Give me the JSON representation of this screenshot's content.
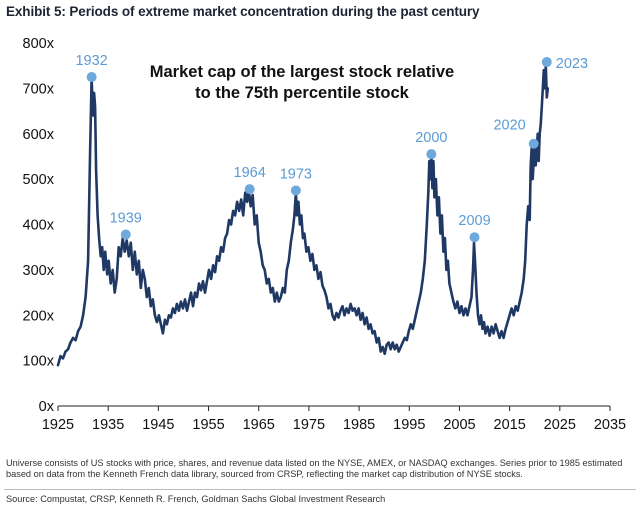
{
  "exhibit_title": "Exhibit 5: Periods of extreme market concentration during the past century",
  "footnote": "Universe consists of US stocks with price, shares, and revenue data listed on the NYSE, AMEX, or NASDAQ exchanges. Series prior to 1985 estimated based on data from the Kenneth French data library, sourced from CRSP, reflecting the market cap distribution of NYSE stocks.",
  "source": "Source: Compustat, CRSP, Kenneth R. French, Goldman Sachs Global Investment Research",
  "colors": {
    "line": "#1f3864",
    "marker": "#6fa8dc",
    "marker_label": "#5b9bd5"
  },
  "chart_data": {
    "type": "line",
    "title_lines": [
      "Market cap of the largest stock relative",
      "to the 75th percentile stock"
    ],
    "xlim": [
      1925,
      2035
    ],
    "ylim": [
      0,
      800
    ],
    "x_ticks": [
      1925,
      1935,
      1945,
      1955,
      1965,
      1975,
      1985,
      1995,
      2005,
      2015,
      2025,
      2035
    ],
    "y_ticks": [
      0,
      100,
      200,
      300,
      400,
      500,
      600,
      700,
      800
    ],
    "y_tick_labels": [
      "0x",
      "100x",
      "200x",
      "300x",
      "400x",
      "500x",
      "600x",
      "700x",
      "800x"
    ],
    "series": [
      {
        "name": "Market cap of largest stock / 75th percentile stock",
        "points": [
          [
            1925.0,
            90
          ],
          [
            1925.5,
            110
          ],
          [
            1926.0,
            105
          ],
          [
            1926.5,
            120
          ],
          [
            1927.0,
            125
          ],
          [
            1927.5,
            140
          ],
          [
            1928.0,
            150
          ],
          [
            1928.5,
            145
          ],
          [
            1929.0,
            165
          ],
          [
            1929.5,
            175
          ],
          [
            1930.0,
            200
          ],
          [
            1930.5,
            240
          ],
          [
            1931.0,
            320
          ],
          [
            1931.4,
            560
          ],
          [
            1931.7,
            720
          ],
          [
            1932.0,
            640
          ],
          [
            1932.2,
            690
          ],
          [
            1932.4,
            660
          ],
          [
            1932.6,
            520
          ],
          [
            1932.9,
            420
          ],
          [
            1933.2,
            370
          ],
          [
            1933.5,
            330
          ],
          [
            1933.8,
            350
          ],
          [
            1934.1,
            300
          ],
          [
            1934.4,
            340
          ],
          [
            1934.8,
            290
          ],
          [
            1935.1,
            320
          ],
          [
            1935.5,
            270
          ],
          [
            1935.9,
            300
          ],
          [
            1936.3,
            250
          ],
          [
            1936.7,
            280
          ],
          [
            1937.1,
            350
          ],
          [
            1937.5,
            330
          ],
          [
            1937.9,
            370
          ],
          [
            1938.3,
            340
          ],
          [
            1938.7,
            365
          ],
          [
            1939.1,
            330
          ],
          [
            1939.5,
            360
          ],
          [
            1939.9,
            300
          ],
          [
            1940.3,
            340
          ],
          [
            1940.7,
            290
          ],
          [
            1941.1,
            320
          ],
          [
            1941.5,
            260
          ],
          [
            1941.9,
            300
          ],
          [
            1942.3,
            280
          ],
          [
            1942.7,
            240
          ],
          [
            1943.1,
            260
          ],
          [
            1943.5,
            220
          ],
          [
            1943.9,
            235
          ],
          [
            1944.3,
            200
          ],
          [
            1944.7,
            185
          ],
          [
            1945.1,
            200
          ],
          [
            1945.5,
            180
          ],
          [
            1945.9,
            160
          ],
          [
            1946.3,
            190
          ],
          [
            1946.7,
            180
          ],
          [
            1947.1,
            200
          ],
          [
            1947.5,
            195
          ],
          [
            1947.9,
            215
          ],
          [
            1948.3,
            205
          ],
          [
            1948.7,
            225
          ],
          [
            1949.1,
            210
          ],
          [
            1949.5,
            230
          ],
          [
            1949.9,
            215
          ],
          [
            1950.3,
            235
          ],
          [
            1950.7,
            210
          ],
          [
            1951.1,
            230
          ],
          [
            1951.5,
            250
          ],
          [
            1951.9,
            220
          ],
          [
            1952.3,
            250
          ],
          [
            1952.7,
            240
          ],
          [
            1953.1,
            270
          ],
          [
            1953.5,
            255
          ],
          [
            1953.9,
            275
          ],
          [
            1954.3,
            250
          ],
          [
            1954.7,
            275
          ],
          [
            1955.1,
            300
          ],
          [
            1955.5,
            280
          ],
          [
            1955.9,
            310
          ],
          [
            1956.3,
            295
          ],
          [
            1956.7,
            330
          ],
          [
            1957.1,
            320
          ],
          [
            1957.5,
            350
          ],
          [
            1957.9,
            340
          ],
          [
            1958.3,
            370
          ],
          [
            1958.7,
            380
          ],
          [
            1959.1,
            410
          ],
          [
            1959.5,
            400
          ],
          [
            1959.9,
            430
          ],
          [
            1960.3,
            420
          ],
          [
            1960.7,
            450
          ],
          [
            1961.1,
            430
          ],
          [
            1961.5,
            455
          ],
          [
            1961.9,
            420
          ],
          [
            1962.3,
            470
          ],
          [
            1962.7,
            450
          ],
          [
            1963.0,
            478
          ],
          [
            1963.4,
            440
          ],
          [
            1963.8,
            465
          ],
          [
            1964.2,
            400
          ],
          [
            1964.6,
            420
          ],
          [
            1965.0,
            360
          ],
          [
            1965.4,
            340
          ],
          [
            1965.8,
            310
          ],
          [
            1966.2,
            300
          ],
          [
            1966.6,
            270
          ],
          [
            1967.0,
            280
          ],
          [
            1967.4,
            250
          ],
          [
            1967.8,
            260
          ],
          [
            1968.2,
            230
          ],
          [
            1968.6,
            250
          ],
          [
            1969.0,
            230
          ],
          [
            1969.4,
            240
          ],
          [
            1969.8,
            260
          ],
          [
            1970.2,
            250
          ],
          [
            1970.6,
            300
          ],
          [
            1971.0,
            320
          ],
          [
            1971.4,
            360
          ],
          [
            1971.8,
            390
          ],
          [
            1972.1,
            420
          ],
          [
            1972.4,
            470
          ],
          [
            1972.6,
            420
          ],
          [
            1972.9,
            450
          ],
          [
            1973.2,
            400
          ],
          [
            1973.5,
            420
          ],
          [
            1973.8,
            370
          ],
          [
            1974.1,
            380
          ],
          [
            1974.5,
            340
          ],
          [
            1974.9,
            350
          ],
          [
            1975.3,
            320
          ],
          [
            1975.7,
            335
          ],
          [
            1976.1,
            300
          ],
          [
            1976.5,
            310
          ],
          [
            1976.9,
            280
          ],
          [
            1977.3,
            295
          ],
          [
            1977.7,
            265
          ],
          [
            1978.1,
            255
          ],
          [
            1978.5,
            240
          ],
          [
            1978.9,
            215
          ],
          [
            1979.3,
            225
          ],
          [
            1979.7,
            200
          ],
          [
            1980.1,
            190
          ],
          [
            1980.5,
            205
          ],
          [
            1980.9,
            195
          ],
          [
            1981.3,
            210
          ],
          [
            1981.7,
            220
          ],
          [
            1982.1,
            200
          ],
          [
            1982.5,
            215
          ],
          [
            1982.9,
            205
          ],
          [
            1983.3,
            225
          ],
          [
            1983.7,
            210
          ],
          [
            1984.1,
            215
          ],
          [
            1984.5,
            200
          ],
          [
            1984.9,
            215
          ],
          [
            1985.3,
            190
          ],
          [
            1985.7,
            205
          ],
          [
            1986.1,
            180
          ],
          [
            1986.5,
            195
          ],
          [
            1986.9,
            170
          ],
          [
            1987.3,
            180
          ],
          [
            1987.7,
            160
          ],
          [
            1988.1,
            165
          ],
          [
            1988.5,
            140
          ],
          [
            1988.9,
            150
          ],
          [
            1989.3,
            120
          ],
          [
            1989.7,
            130
          ],
          [
            1990.1,
            115
          ],
          [
            1990.5,
            135
          ],
          [
            1990.9,
            140
          ],
          [
            1991.3,
            125
          ],
          [
            1991.7,
            140
          ],
          [
            1992.1,
            125
          ],
          [
            1992.5,
            135
          ],
          [
            1992.9,
            120
          ],
          [
            1993.3,
            130
          ],
          [
            1993.7,
            140
          ],
          [
            1994.1,
            150
          ],
          [
            1994.5,
            145
          ],
          [
            1994.9,
            165
          ],
          [
            1995.3,
            180
          ],
          [
            1995.7,
            170
          ],
          [
            1996.1,
            190
          ],
          [
            1996.5,
            210
          ],
          [
            1996.9,
            230
          ],
          [
            1997.3,
            250
          ],
          [
            1997.7,
            280
          ],
          [
            1998.1,
            320
          ],
          [
            1998.5,
            400
          ],
          [
            1998.8,
            470
          ],
          [
            1999.0,
            540
          ],
          [
            1999.2,
            500
          ],
          [
            1999.4,
            550
          ],
          [
            1999.6,
            480
          ],
          [
            1999.8,
            540
          ],
          [
            2000.0,
            460
          ],
          [
            2000.3,
            500
          ],
          [
            2000.6,
            420
          ],
          [
            2000.9,
            460
          ],
          [
            2001.2,
            380
          ],
          [
            2001.5,
            420
          ],
          [
            2001.8,
            340
          ],
          [
            2002.1,
            370
          ],
          [
            2002.4,
            300
          ],
          [
            2002.7,
            320
          ],
          [
            2003.0,
            270
          ],
          [
            2003.4,
            250
          ],
          [
            2003.8,
            230
          ],
          [
            2004.2,
            215
          ],
          [
            2004.6,
            230
          ],
          [
            2005.0,
            205
          ],
          [
            2005.4,
            220
          ],
          [
            2005.8,
            200
          ],
          [
            2006.2,
            215
          ],
          [
            2006.6,
            200
          ],
          [
            2007.0,
            220
          ],
          [
            2007.4,
            240
          ],
          [
            2007.7,
            300
          ],
          [
            2007.9,
            360
          ],
          [
            2008.1,
            320
          ],
          [
            2008.4,
            250
          ],
          [
            2008.7,
            200
          ],
          [
            2009.0,
            180
          ],
          [
            2009.3,
            200
          ],
          [
            2009.6,
            170
          ],
          [
            2009.9,
            185
          ],
          [
            2010.2,
            160
          ],
          [
            2010.6,
            175
          ],
          [
            2011.0,
            155
          ],
          [
            2011.4,
            175
          ],
          [
            2011.8,
            160
          ],
          [
            2012.2,
            180
          ],
          [
            2012.6,
            165
          ],
          [
            2013.0,
            150
          ],
          [
            2013.4,
            165
          ],
          [
            2013.8,
            150
          ],
          [
            2014.2,
            170
          ],
          [
            2014.6,
            185
          ],
          [
            2015.0,
            200
          ],
          [
            2015.4,
            215
          ],
          [
            2015.8,
            200
          ],
          [
            2016.2,
            220
          ],
          [
            2016.6,
            210
          ],
          [
            2017.0,
            230
          ],
          [
            2017.4,
            250
          ],
          [
            2017.8,
            280
          ],
          [
            2018.1,
            320
          ],
          [
            2018.4,
            400
          ],
          [
            2018.7,
            440
          ],
          [
            2019.0,
            410
          ],
          [
            2019.2,
            530
          ],
          [
            2019.4,
            570
          ],
          [
            2019.6,
            500
          ],
          [
            2019.8,
            540
          ],
          [
            2020.0,
            580
          ],
          [
            2020.2,
            530
          ],
          [
            2020.4,
            560
          ],
          [
            2020.6,
            600
          ],
          [
            2020.8,
            540
          ],
          [
            2021.0,
            600
          ],
          [
            2021.2,
            620
          ],
          [
            2021.4,
            660
          ],
          [
            2021.6,
            700
          ],
          [
            2021.8,
            740
          ],
          [
            2022.0,
            700
          ],
          [
            2022.2,
            750
          ],
          [
            2022.4,
            680
          ],
          [
            2022.6,
            700
          ]
        ]
      }
    ],
    "annotations": [
      {
        "year": 1932,
        "x": 1931.7,
        "y": 725,
        "label": "1932",
        "label_pos": "above"
      },
      {
        "year": 1939,
        "x": 1938.5,
        "y": 378,
        "label": "1939",
        "label_pos": "above"
      },
      {
        "year": 1964,
        "x": 1963.2,
        "y": 478,
        "label": "1964",
        "label_pos": "above"
      },
      {
        "year": 1973,
        "x": 1972.4,
        "y": 475,
        "label": "1973",
        "label_pos": "above"
      },
      {
        "year": 2000,
        "x": 1999.4,
        "y": 555,
        "label": "2000",
        "label_pos": "above"
      },
      {
        "year": 2009,
        "x": 2008.0,
        "y": 372,
        "label": "2009",
        "label_pos": "above"
      },
      {
        "year": 2020,
        "x": 2019.8,
        "y": 578,
        "label": "2020",
        "label_pos": "upper-left"
      },
      {
        "year": 2023,
        "x": 2022.4,
        "y": 758,
        "label": "2023",
        "label_pos": "right"
      }
    ]
  }
}
